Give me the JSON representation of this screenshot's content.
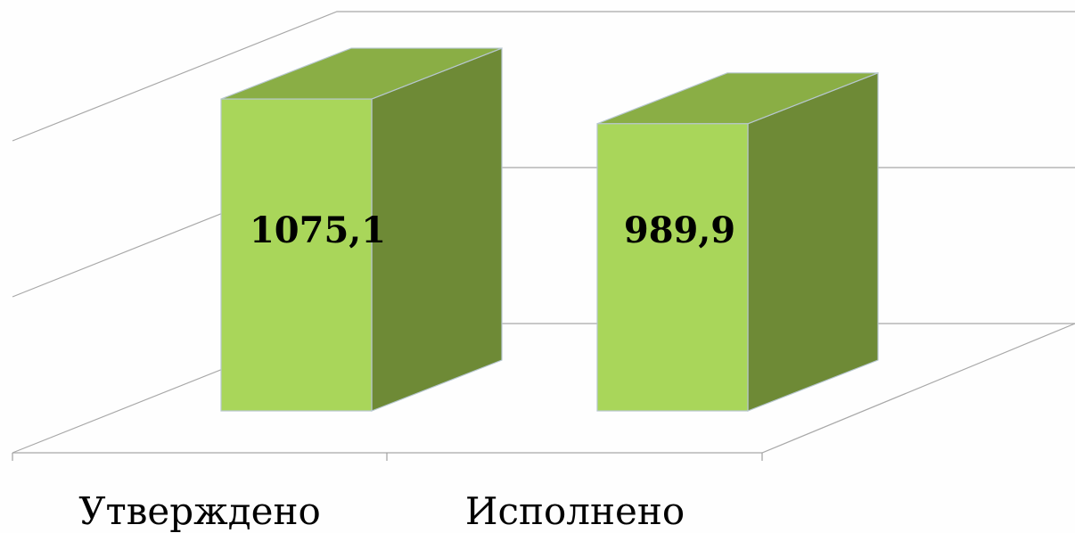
{
  "chart_data": {
    "type": "bar",
    "style": "3d-column",
    "categories": [
      "Утверждено",
      "Исполнено"
    ],
    "values": [
      1075.1,
      989.9
    ],
    "data_labels": [
      "1075,1",
      "989,9"
    ],
    "title": "",
    "xlabel": "",
    "ylabel": "",
    "grid": true,
    "legend": "none",
    "colors": {
      "bar_front": "#a9d65a",
      "bar_top": "#8aae45",
      "bar_side": "#6e8a36",
      "gridline": "#a8a8a8"
    }
  }
}
